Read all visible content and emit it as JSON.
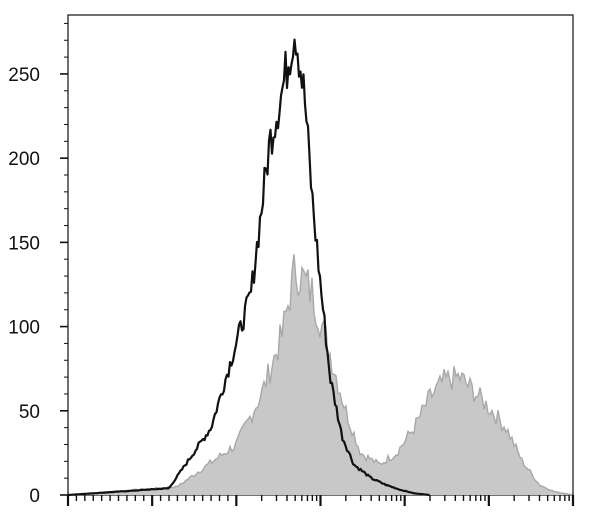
{
  "chart_data": {
    "type": "area",
    "title": "",
    "xlabel": "",
    "ylabel": "",
    "x_scale": "log",
    "xlim": [
      -1000,
      10000000
    ],
    "ylim": [
      0,
      285
    ],
    "y_ticks": [
      0,
      50,
      100,
      150,
      200,
      250
    ],
    "grid": false,
    "legend": "none",
    "series": [
      {
        "kind": "filled",
        "color": "#c8c8c8",
        "edge_color": "#a8a8a8",
        "x": [
          -1000,
          300,
          1000,
          2000,
          3500,
          5000,
          8000,
          12000,
          20000,
          30000,
          50000,
          80000,
          130000,
          200000,
          300000,
          450000,
          650000,
          1000000,
          1600000,
          2500000,
          4000000,
          6000000,
          10000000
        ],
        "values": [
          0,
          5,
          30,
          60,
          95,
          135,
          120,
          90,
          50,
          25,
          18,
          25,
          40,
          58,
          68,
          70,
          62,
          52,
          40,
          20,
          6,
          2,
          0
        ]
      },
      {
        "kind": "line",
        "color": "#111111",
        "x": [
          -1000,
          200,
          700,
          1500,
          2500,
          3500,
          5000,
          6500,
          8000,
          10000,
          13000,
          18000,
          25000,
          40000,
          60000,
          90000,
          130000,
          200000
        ],
        "values": [
          0,
          4,
          40,
          120,
          210,
          240,
          278,
          235,
          175,
          125,
          70,
          35,
          18,
          10,
          6,
          3,
          1,
          0
        ]
      }
    ]
  }
}
